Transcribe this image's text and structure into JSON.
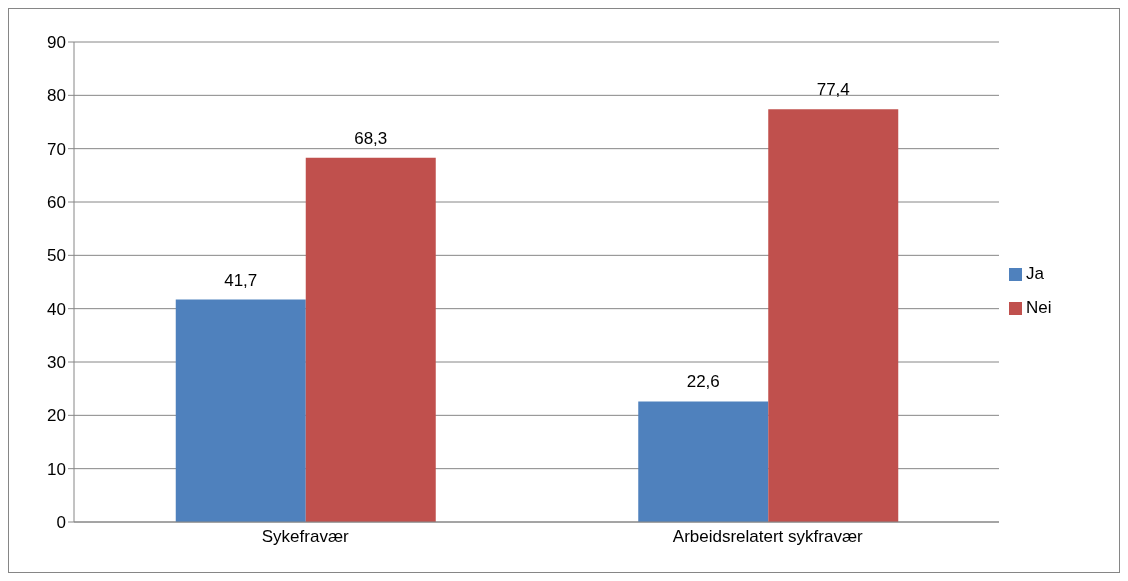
{
  "chart_data": {
    "type": "bar",
    "categories": [
      "Sykefravær",
      "Arbeidsrelatert sykfravær"
    ],
    "series": [
      {
        "name": "Ja",
        "color": "#4f81bd",
        "values": [
          41.7,
          22.6
        ],
        "value_labels": [
          "41,7",
          "22,6"
        ]
      },
      {
        "name": "Nei",
        "color": "#c0504d",
        "values": [
          68.3,
          77.4
        ],
        "value_labels": [
          "68,3",
          "77,4"
        ]
      }
    ],
    "ylim": [
      0,
      90
    ],
    "yticks": [
      0,
      10,
      20,
      30,
      40,
      50,
      60,
      70,
      80,
      90
    ],
    "grid": "y",
    "legend": "right"
  }
}
